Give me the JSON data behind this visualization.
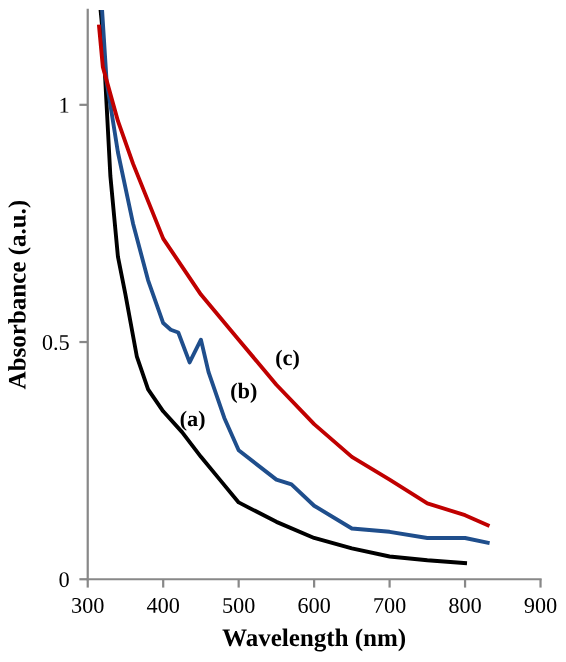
{
  "chart_data": {
    "type": "line",
    "xlabel": "Wavelength (nm)",
    "ylabel": "Absorbance (a.u.)",
    "xlim": [
      300,
      900
    ],
    "ylim": [
      0,
      1.2
    ],
    "xticks": [
      300,
      400,
      500,
      600,
      700,
      800,
      900
    ],
    "yticks": [
      0,
      0.5,
      1
    ],
    "grid": false,
    "legend": false,
    "marker": "none",
    "line_style": "solid",
    "series": [
      {
        "name": "(a)",
        "color": "#000000",
        "x": [
          317,
          320,
          325,
          330,
          340,
          350,
          365,
          380,
          400,
          425,
          450,
          475,
          500,
          550,
          600,
          650,
          700,
          750,
          800
        ],
        "values": [
          1.2,
          1.15,
          1.0,
          0.85,
          0.68,
          0.6,
          0.47,
          0.4,
          0.354,
          0.31,
          0.258,
          0.21,
          0.162,
          0.121,
          0.087,
          0.065,
          0.048,
          0.04,
          0.034
        ]
      },
      {
        "name": "(b)",
        "color": "#1f4e8c",
        "x": [
          319,
          325,
          340,
          360,
          380,
          400,
          410,
          420,
          435,
          450,
          460,
          481,
          500,
          550,
          570,
          600,
          650,
          700,
          750,
          800,
          830
        ],
        "values": [
          1.2,
          1.05,
          0.9,
          0.75,
          0.63,
          0.54,
          0.526,
          0.52,
          0.457,
          0.505,
          0.437,
          0.34,
          0.272,
          0.21,
          0.2,
          0.155,
          0.107,
          0.1,
          0.087,
          0.087,
          0.077
        ]
      },
      {
        "name": "(c)",
        "color": "#c00000",
        "x": [
          315,
          320,
          340,
          360,
          400,
          450,
          500,
          550,
          600,
          650,
          700,
          750,
          800,
          830
        ],
        "values": [
          1.165,
          1.08,
          0.966,
          0.876,
          0.718,
          0.6,
          0.505,
          0.41,
          0.327,
          0.258,
          0.21,
          0.16,
          0.135,
          0.114
        ]
      }
    ]
  }
}
